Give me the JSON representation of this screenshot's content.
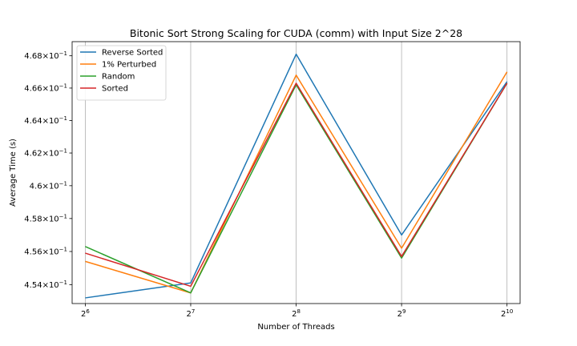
{
  "chart_data": {
    "type": "line",
    "title": "Bitonic Sort Strong Scaling for CUDA (comm) with Input Size 2^28",
    "xlabel": "Number of Threads",
    "ylabel": "Average Time (s)",
    "x_scale": "log2",
    "y_scale": "log",
    "x": [
      64,
      128,
      256,
      512,
      1024
    ],
    "x_tick_labels": [
      {
        "base": "2",
        "exp": "6"
      },
      {
        "base": "2",
        "exp": "7"
      },
      {
        "base": "2",
        "exp": "8"
      },
      {
        "base": "2",
        "exp": "9"
      },
      {
        "base": "2",
        "exp": "10"
      }
    ],
    "y_ticks": [
      {
        "value": 0.454,
        "mantissa": "4.54",
        "base": "10",
        "exp": "−1"
      },
      {
        "value": 0.456,
        "mantissa": "4.56",
        "base": "10",
        "exp": "−1"
      },
      {
        "value": 0.458,
        "mantissa": "4.58",
        "base": "10",
        "exp": "−1"
      },
      {
        "value": 0.46,
        "mantissa": "4.6",
        "base": "10",
        "exp": "−1"
      },
      {
        "value": 0.462,
        "mantissa": "4.62",
        "base": "10",
        "exp": "−1"
      },
      {
        "value": 0.464,
        "mantissa": "4.64",
        "base": "10",
        "exp": "−1"
      },
      {
        "value": 0.466,
        "mantissa": "4.66",
        "base": "10",
        "exp": "−1"
      },
      {
        "value": 0.468,
        "mantissa": "4.68",
        "base": "10",
        "exp": "−1"
      }
    ],
    "xlim": [
      58.7,
      1116
    ],
    "ylim": [
      0.45286,
      0.46888
    ],
    "grid": "vertical",
    "legend_position": "top-left",
    "series": [
      {
        "name": "Reverse Sorted",
        "color": "#1f77b4",
        "values": [
          0.4532,
          0.4541,
          0.4681,
          0.457,
          0.4664
        ]
      },
      {
        "name": "1% Perturbed",
        "color": "#ff7f0e",
        "values": [
          0.4554,
          0.4535,
          0.4668,
          0.4562,
          0.467
        ]
      },
      {
        "name": "Random",
        "color": "#2ca02c",
        "values": [
          0.4563,
          0.4535,
          0.4662,
          0.4556,
          0.4663
        ]
      },
      {
        "name": "Sorted",
        "color": "#d62728",
        "values": [
          0.4559,
          0.4539,
          0.4663,
          0.4557,
          0.4663
        ]
      }
    ]
  }
}
